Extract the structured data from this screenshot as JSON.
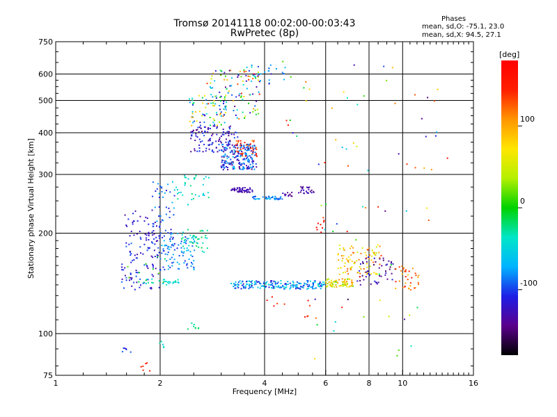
{
  "header": {
    "title_line1": "Tromsø 20141118 00:02:00-00:03:43",
    "title_line2": "RwPretec (8p)"
  },
  "phase_info": {
    "title": "Phases",
    "o_mode": "mean, sd,O: -75.1, 23.0",
    "x_mode": "mean, sd,X:  94.5, 27.1"
  },
  "colorbar": {
    "unit_label": "[deg]",
    "tick_labels": [
      "100",
      "0",
      "-100"
    ],
    "tick_values": [
      100,
      0,
      -100
    ],
    "range": [
      -180,
      180
    ]
  },
  "chart_data": {
    "type": "scatter",
    "xlabel": "Frequency [MHz]",
    "ylabel": "Stationary phase Virtual Height [km]",
    "xscale": "log",
    "yscale": "log",
    "xlim": [
      1,
      16
    ],
    "ylim": [
      75,
      750
    ],
    "x_ticks": [
      1,
      2,
      4,
      6,
      8,
      10,
      16
    ],
    "x_tick_labels": [
      "1",
      "2",
      "4",
      "6",
      "8",
      "10",
      "16"
    ],
    "y_ticks": [
      75,
      100,
      200,
      300,
      400,
      500,
      600,
      750
    ],
    "y_tick_labels": [
      "75",
      "100",
      "200",
      "300",
      "400",
      "500",
      "600",
      "750"
    ],
    "grid": true,
    "clusters": [
      {
        "freq": [
          1.55,
          2.0
        ],
        "height": [
          135,
          235
        ],
        "phase": [
          -140,
          -90
        ],
        "count": 130
      },
      {
        "freq": [
          1.6,
          2.1
        ],
        "height": [
          140,
          175
        ],
        "phase": [
          -30,
          20
        ],
        "count": 12
      },
      {
        "freq": [
          1.9,
          2.2
        ],
        "height": [
          180,
          290
        ],
        "phase": [
          -120,
          -60
        ],
        "count": 50
      },
      {
        "freq": [
          2.0,
          2.55
        ],
        "height": [
          155,
          200
        ],
        "phase": [
          -110,
          -60
        ],
        "count": 90
      },
      {
        "freq": [
          2.3,
          2.75
        ],
        "height": [
          175,
          205
        ],
        "phase": [
          -50,
          -10
        ],
        "count": 40
      },
      {
        "freq": [
          1.8,
          2.3
        ],
        "height": [
          140,
          146
        ],
        "phase": [
          -60,
          -20
        ],
        "count": 25
      },
      {
        "freq": [
          2.2,
          2.8
        ],
        "height": [
          240,
          300
        ],
        "phase": [
          -60,
          -20
        ],
        "count": 35
      },
      {
        "freq": [
          2.45,
          3.35
        ],
        "height": [
          350,
          420
        ],
        "phase": [
          -150,
          -90
        ],
        "count": 120
      },
      {
        "freq": [
          2.4,
          3.1
        ],
        "height": [
          420,
          520
        ],
        "phase": [
          -130,
          120
        ],
        "count": 70
      },
      {
        "freq": [
          3.0,
          3.8
        ],
        "height": [
          310,
          370
        ],
        "phase": [
          -150,
          -60
        ],
        "count": 200
      },
      {
        "freq": [
          3.3,
          3.8
        ],
        "height": [
          335,
          380
        ],
        "phase": [
          110,
          160
        ],
        "count": 35
      },
      {
        "freq": [
          2.7,
          3.9
        ],
        "height": [
          440,
          620
        ],
        "phase": [
          -150,
          150
        ],
        "count": 110
      },
      {
        "freq": [
          3.4,
          4.6
        ],
        "height": [
          560,
          640
        ],
        "phase": [
          -130,
          -40
        ],
        "count": 25
      },
      {
        "freq": [
          3.2,
          3.7
        ],
        "height": [
          265,
          274
        ],
        "phase": [
          -140,
          -120
        ],
        "count": 50
      },
      {
        "freq": [
          3.7,
          4.5
        ],
        "height": [
          252,
          258
        ],
        "phase": [
          -100,
          -60
        ],
        "count": 40
      },
      {
        "freq": [
          5.0,
          5.6
        ],
        "height": [
          262,
          276
        ],
        "phase": [
          -150,
          -120
        ],
        "count": 25
      },
      {
        "freq": [
          4.5,
          5.0
        ],
        "height": [
          258,
          266
        ],
        "phase": [
          -150,
          -120
        ],
        "count": 12
      },
      {
        "freq": [
          3.2,
          6.0
        ],
        "height": [
          136,
          144
        ],
        "phase": [
          -120,
          -40
        ],
        "count": 200
      },
      {
        "freq": [
          6.0,
          7.2
        ],
        "height": [
          138,
          146
        ],
        "phase": [
          20,
          120
        ],
        "count": 70
      },
      {
        "freq": [
          6.5,
          8.6
        ],
        "height": [
          150,
          185
        ],
        "phase": [
          40,
          130
        ],
        "count": 90
      },
      {
        "freq": [
          7.5,
          9.6
        ],
        "height": [
          140,
          170
        ],
        "phase": [
          -160,
          -100
        ],
        "count": 50
      },
      {
        "freq": [
          9.5,
          11.2
        ],
        "height": [
          135,
          160
        ],
        "phase": [
          80,
          160
        ],
        "count": 35
      },
      {
        "freq": [
          1.55,
          1.65
        ],
        "height": [
          88,
          92
        ],
        "phase": [
          -120,
          -90
        ],
        "count": 6
      },
      {
        "freq": [
          1.98,
          2.05
        ],
        "height": [
          88,
          96
        ],
        "phase": [
          -60,
          -20
        ],
        "count": 6
      },
      {
        "freq": [
          1.75,
          1.9
        ],
        "height": [
          77,
          82
        ],
        "phase": [
          140,
          170
        ],
        "count": 6
      },
      {
        "freq": [
          2.3,
          2.6
        ],
        "height": [
          103,
          108
        ],
        "phase": [
          -40,
          -10
        ],
        "count": 8
      },
      {
        "freq": [
          4.5,
          13.5
        ],
        "height": [
          300,
          680
        ],
        "phase": [
          -150,
          170
        ],
        "count": 45
      },
      {
        "freq": [
          5.5,
          12.0
        ],
        "height": [
          80,
          250
        ],
        "phase": [
          -160,
          170
        ],
        "count": 40
      },
      {
        "freq": [
          4.0,
          5.5
        ],
        "height": [
          112,
          130
        ],
        "phase": [
          120,
          170
        ],
        "count": 10
      },
      {
        "freq": [
          5.6,
          6.0
        ],
        "height": [
          200,
          225
        ],
        "phase": [
          160,
          180
        ],
        "count": 8
      }
    ]
  },
  "colors": {
    "colormap_stops": [
      "#000000",
      "#5a008c",
      "#1e1ee6",
      "#00b4ff",
      "#00e6c8",
      "#00d200",
      "#b4f000",
      "#ffe600",
      "#ff9600",
      "#ff1e00",
      "#ff0000"
    ]
  }
}
